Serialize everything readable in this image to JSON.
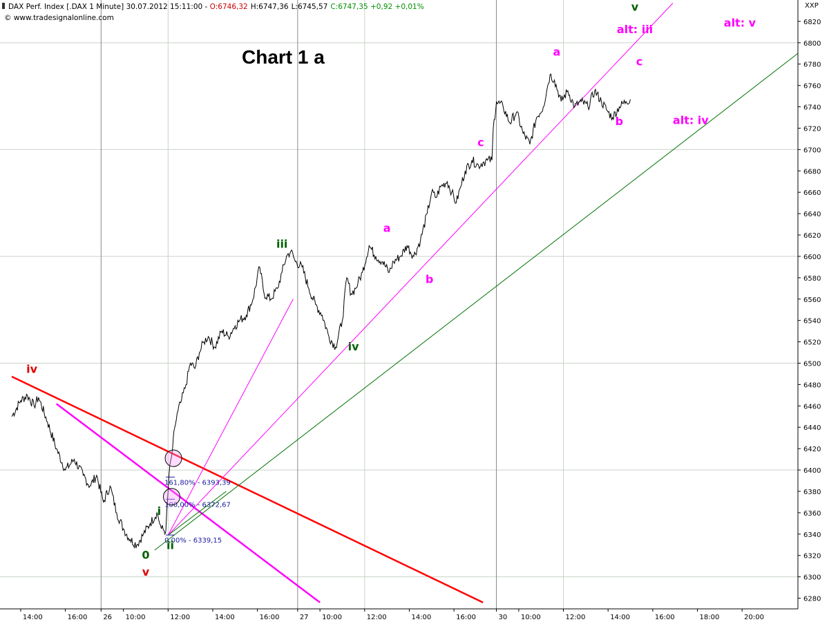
{
  "chart_data": {
    "type": "line",
    "title": "Chart 1 a",
    "header": {
      "prefix": "DAX Perf. Index [.DAX  1 Minute] 30.07.2012 15:11:00 - ",
      "open": "O:6746,32",
      "high": "H:6747,36",
      "low": "L:6745,57",
      "close": "C:6747,35 +0,92 +0,01%",
      "website": "www.tradesignalonline.com"
    },
    "price_axis_label": "XXP",
    "ylim": [
      6270,
      6840
    ],
    "y_ticks": [
      6280,
      6300,
      6320,
      6340,
      6360,
      6380,
      6400,
      6420,
      6440,
      6460,
      6480,
      6500,
      6520,
      6540,
      6560,
      6580,
      6600,
      6620,
      6640,
      6660,
      6680,
      6700,
      6720,
      6740,
      6760,
      6780,
      6800,
      6820
    ],
    "x_ticks": [
      {
        "t": 0.2,
        "label": "14:00"
      },
      {
        "t": 1.2,
        "label": "16:00"
      },
      {
        "t": 2.0,
        "label": "26"
      },
      {
        "t": 2.5,
        "label": "10:00"
      },
      {
        "t": 3.5,
        "label": "12:00"
      },
      {
        "t": 4.5,
        "label": "14:00"
      },
      {
        "t": 5.5,
        "label": "16:00"
      },
      {
        "t": 6.4,
        "label": "27"
      },
      {
        "t": 6.9,
        "label": "10:00"
      },
      {
        "t": 7.9,
        "label": "12:00"
      },
      {
        "t": 8.9,
        "label": "14:00"
      },
      {
        "t": 9.9,
        "label": "16:00"
      },
      {
        "t": 10.85,
        "label": "30"
      },
      {
        "t": 11.35,
        "label": "10:00"
      },
      {
        "t": 12.35,
        "label": "12:00"
      },
      {
        "t": 13.35,
        "label": "14:00"
      },
      {
        "t": 14.35,
        "label": "16:00"
      },
      {
        "t": 15.35,
        "label": "18:00"
      },
      {
        "t": 16.35,
        "label": "20:00"
      }
    ],
    "xlim": [
      0,
      17.6
    ],
    "series": [
      {
        "color": "#000000",
        "x": [
          0.0,
          0.2,
          0.35,
          0.5,
          0.6,
          0.8,
          1.0,
          1.2,
          1.4,
          1.6,
          1.75,
          1.9,
          2.05,
          2.2,
          2.35,
          2.5,
          2.65,
          2.8,
          2.95,
          3.1,
          3.25,
          3.35,
          3.45,
          3.52,
          3.6,
          3.65,
          3.72,
          3.8,
          3.9,
          4.0,
          4.1,
          4.2,
          4.3,
          4.4,
          4.55,
          4.7,
          4.85,
          5.0,
          5.1,
          5.25,
          5.4,
          5.55,
          5.65,
          5.8,
          5.95,
          6.05,
          6.15,
          6.25,
          6.35,
          6.5,
          6.65,
          6.8,
          6.95,
          7.1,
          7.25,
          7.4,
          7.5,
          7.6,
          7.7,
          7.75,
          7.85,
          8.0,
          8.15,
          8.3,
          8.45,
          8.55,
          8.7,
          8.85,
          9.0,
          9.15,
          9.3,
          9.4,
          9.5,
          9.6,
          9.75,
          9.85,
          9.95,
          10.05,
          10.15,
          10.3,
          10.45,
          10.55,
          10.65,
          10.75,
          10.78,
          10.85,
          11.0,
          11.15,
          11.3,
          11.45,
          11.6,
          11.75,
          11.9,
          12.0,
          12.05,
          12.15,
          12.3,
          12.45,
          12.6,
          12.75,
          12.9,
          13.05,
          13.2,
          13.35,
          13.45,
          13.6,
          13.75,
          13.85
        ],
        "values": [
          6450,
          6465,
          6470,
          6460,
          6468,
          6445,
          6420,
          6400,
          6410,
          6395,
          6385,
          6395,
          6370,
          6385,
          6360,
          6345,
          6335,
          6330,
          6340,
          6350,
          6360,
          6345,
          6343,
          6395,
          6420,
          6440,
          6455,
          6465,
          6480,
          6500,
          6495,
          6510,
          6520,
          6525,
          6515,
          6530,
          6525,
          6535,
          6540,
          6545,
          6560,
          6590,
          6565,
          6560,
          6570,
          6585,
          6600,
          6605,
          6595,
          6590,
          6570,
          6555,
          6545,
          6525,
          6515,
          6540,
          6580,
          6565,
          6570,
          6575,
          6585,
          6610,
          6600,
          6595,
          6585,
          6595,
          6600,
          6610,
          6600,
          6615,
          6640,
          6660,
          6655,
          6665,
          6670,
          6660,
          6650,
          6665,
          6680,
          6690,
          6685,
          6688,
          6690,
          6690,
          6720,
          6745,
          6740,
          6725,
          6735,
          6715,
          6705,
          6730,
          6740,
          6760,
          6770,
          6765,
          6745,
          6755,
          6740,
          6745,
          6740,
          6755,
          6745,
          6735,
          6730,
          6740,
          6745,
          6747
        ]
      }
    ],
    "trendlines": [
      {
        "color": "#ff0000",
        "x": [
          0.0,
          10.55
        ],
        "y": [
          6487.5,
          6276
        ],
        "width": 2.5
      },
      {
        "color": "#ff00ff",
        "x": [
          1.0,
          6.9
        ],
        "y": [
          6462,
          6276
        ],
        "width": 2.5
      },
      {
        "color": "#ff00ff",
        "x": [
          3.5,
          14.8
        ],
        "y": [
          6339,
          6837
        ],
        "width": 1
      },
      {
        "color": "#ff00ff",
        "x": [
          3.5,
          6.3
        ],
        "y": [
          6339,
          6560
        ],
        "width": 1
      },
      {
        "color": "#007000",
        "x": [
          3.2,
          17.6
        ],
        "y": [
          6325,
          6790
        ],
        "width": 1
      },
      {
        "color": "#007000",
        "x": [
          3.5,
          4.8
        ],
        "y": [
          6339,
          6380
        ],
        "width": 1
      }
    ],
    "fib_lines": [
      {
        "x": [
          3.45,
          3.65
        ],
        "y": 6393.39,
        "label": "161,80% - 6393,39"
      },
      {
        "x": [
          3.45,
          3.65
        ],
        "y": 6372.67,
        "label": "100,00% - 6372,67"
      },
      {
        "x": [
          3.45,
          3.65
        ],
        "y": 6339.15,
        "label": "0,00% - 6339,15"
      }
    ],
    "circles": [
      {
        "x": 3.62,
        "y": 6411
      },
      {
        "x": 3.58,
        "y": 6375
      }
    ],
    "annotations": [
      {
        "text": "iv",
        "x": 0.45,
        "y": 6491,
        "color": "#e00000"
      },
      {
        "text": "0",
        "x": 3.0,
        "y": 6317,
        "color": "#006000"
      },
      {
        "text": "v",
        "x": 3.0,
        "y": 6301,
        "color": "#e00000"
      },
      {
        "text": "i",
        "x": 3.3,
        "y": 6358,
        "color": "#006000"
      },
      {
        "text": "ii",
        "x": 3.55,
        "y": 6326,
        "color": "#006000"
      },
      {
        "text": "iii",
        "x": 6.05,
        "y": 6608,
        "color": "#006000"
      },
      {
        "text": "iv",
        "x": 7.65,
        "y": 6512,
        "color": "#006000"
      },
      {
        "text": "a",
        "x": 8.4,
        "y": 6623,
        "color": "#ff00ff"
      },
      {
        "text": "b",
        "x": 9.35,
        "y": 6575,
        "color": "#ff00ff"
      },
      {
        "text": "c",
        "x": 10.5,
        "y": 6703,
        "color": "#ff00ff"
      },
      {
        "text": "a",
        "x": 12.2,
        "y": 6788,
        "color": "#ff00ff"
      },
      {
        "text": "b",
        "x": 13.6,
        "y": 6723,
        "color": "#ff00ff"
      },
      {
        "text": "c",
        "x": 14.05,
        "y": 6779,
        "color": "#ff00ff"
      },
      {
        "text": "v",
        "x": 13.95,
        "y": 6830,
        "color": "#006000"
      },
      {
        "text": "alt: iii",
        "x": 13.95,
        "y": 6809,
        "color": "#ff00ff"
      },
      {
        "text": "alt: v",
        "x": 16.3,
        "y": 6815,
        "color": "#ff00ff"
      },
      {
        "text": "alt: iv",
        "x": 15.2,
        "y": 6724,
        "color": "#ff00ff"
      }
    ]
  }
}
